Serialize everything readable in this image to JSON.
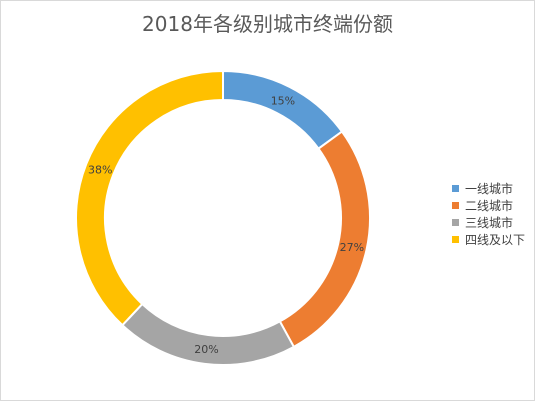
{
  "chart_data": {
    "type": "pie",
    "variant": "donut",
    "title": "2018年各级别城市终端份额",
    "categories": [
      "一线城市",
      "二线城市",
      "三线城市",
      "四线及以下"
    ],
    "values": [
      15,
      27,
      20,
      38
    ],
    "value_labels": [
      "15%",
      "27%",
      "20%",
      "38%"
    ],
    "colors": [
      "#5b9bd5",
      "#ed7d31",
      "#a5a5a5",
      "#ffc000"
    ],
    "legend_position": "right"
  }
}
